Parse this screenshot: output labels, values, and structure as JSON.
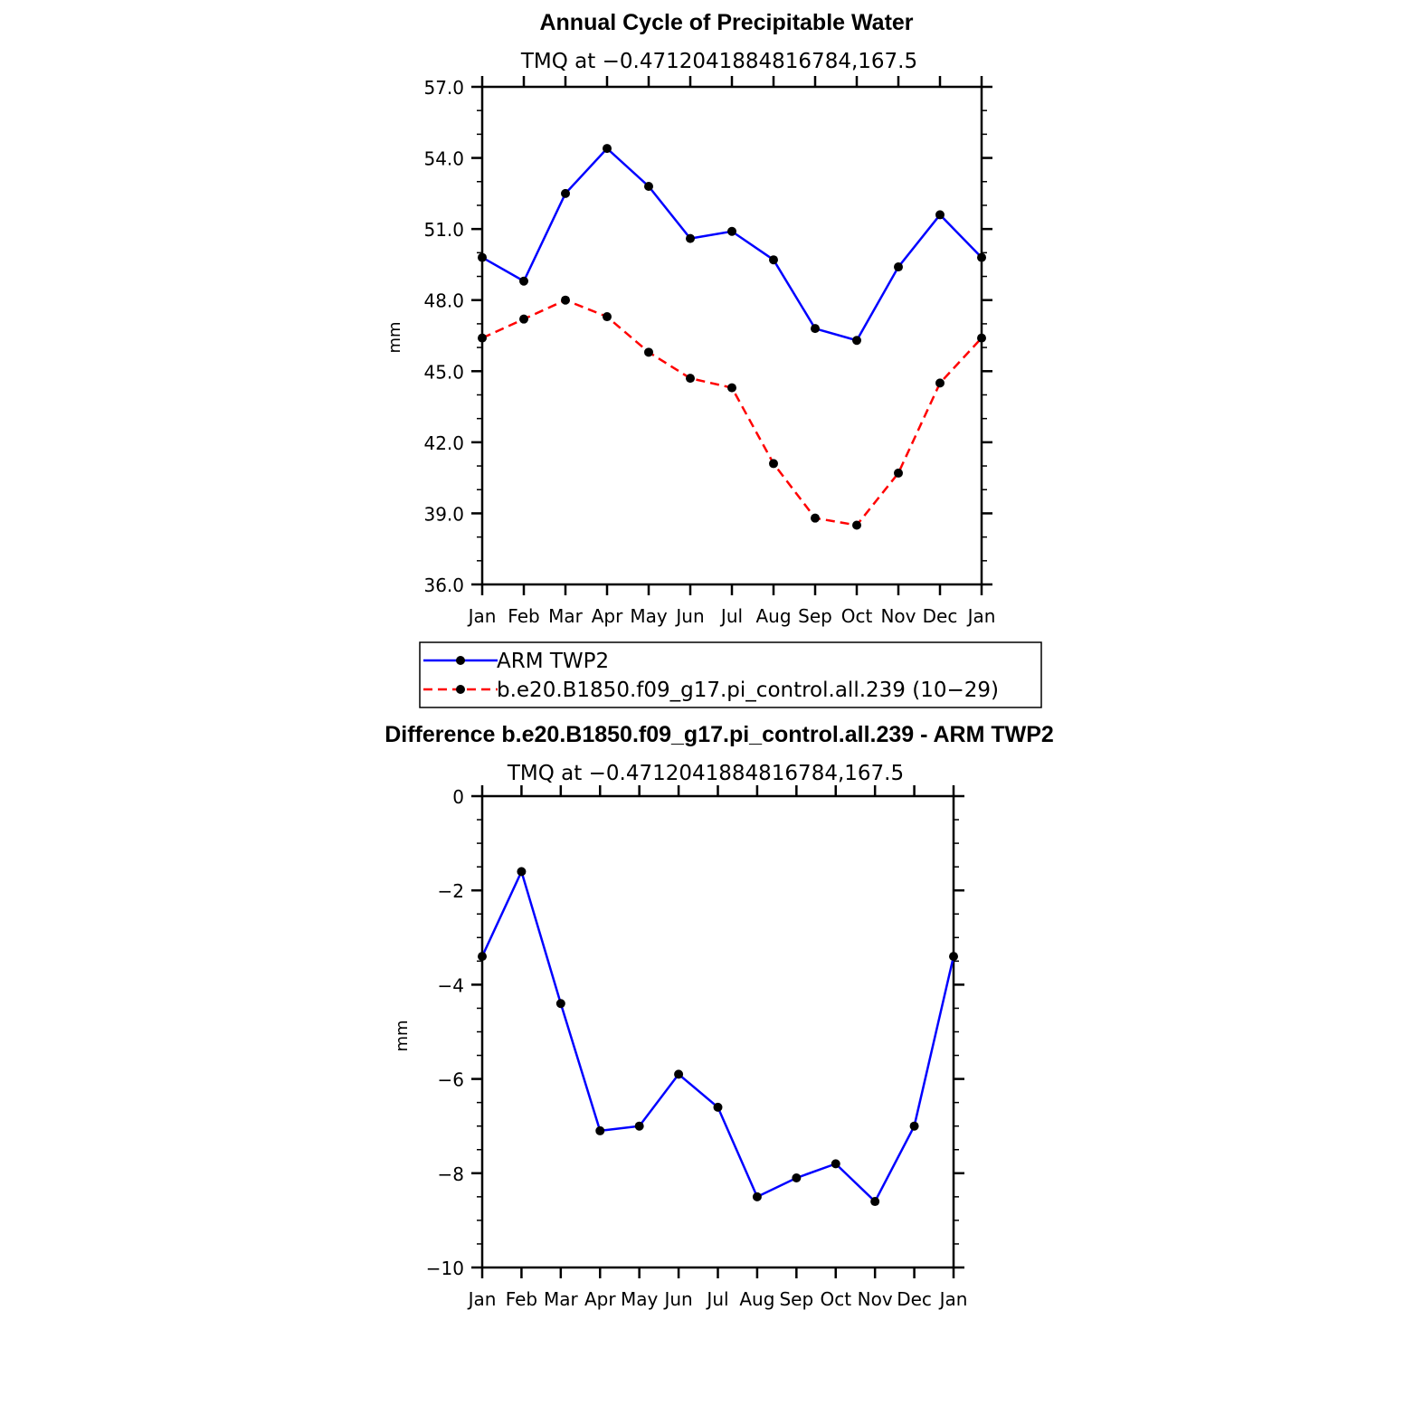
{
  "chart_data": [
    {
      "type": "line",
      "title": "Annual Cycle of Precipitable Water",
      "subtitle": "TMQ at −0.4712041884816784,167.5",
      "ylabel": "mm",
      "xlabel": "",
      "categories": [
        "Jan",
        "Feb",
        "Mar",
        "Apr",
        "May",
        "Jun",
        "Jul",
        "Aug",
        "Sep",
        "Oct",
        "Nov",
        "Dec",
        "Jan"
      ],
      "ylim": [
        36.0,
        57.0
      ],
      "yticks": [
        "36.0",
        "39.0",
        "42.0",
        "45.0",
        "48.0",
        "51.0",
        "54.0",
        "57.0"
      ],
      "grid": false,
      "legend_position": "bottom",
      "series": [
        {
          "name": "ARM TWP2",
          "color": "#0000ff",
          "dash": "solid",
          "values": [
            49.8,
            48.8,
            52.5,
            54.4,
            52.8,
            50.6,
            50.9,
            49.7,
            46.8,
            46.3,
            49.4,
            51.6,
            49.8
          ]
        },
        {
          "name": "b.e20.B1850.f09_g17.pi_control.all.239 (10−29)",
          "color": "#ff0000",
          "dash": "dashed",
          "values": [
            46.4,
            47.2,
            48.0,
            47.3,
            45.8,
            44.7,
            44.3,
            41.1,
            38.8,
            38.5,
            40.7,
            44.5,
            46.4
          ]
        }
      ]
    },
    {
      "type": "line",
      "title": "Difference b.e20.B1850.f09_g17.pi_control.all.239 - ARM TWP2",
      "subtitle": "TMQ at −0.4712041884816784,167.5",
      "ylabel": "mm",
      "xlabel": "",
      "categories": [
        "Jan",
        "Feb",
        "Mar",
        "Apr",
        "May",
        "Jun",
        "Jul",
        "Aug",
        "Sep",
        "Oct",
        "Nov",
        "Dec",
        "Jan"
      ],
      "ylim": [
        -10,
        0
      ],
      "yticks": [
        "−10",
        "−8",
        "−6",
        "−4",
        "−2",
        "0"
      ],
      "grid": false,
      "series": [
        {
          "color": "#0000ff",
          "dash": "solid",
          "values": [
            -3.4,
            -1.6,
            -4.4,
            -7.1,
            -7.0,
            -5.9,
            -6.6,
            -8.5,
            -8.1,
            -7.8,
            -8.6,
            -7.0,
            -3.4
          ]
        }
      ]
    }
  ]
}
